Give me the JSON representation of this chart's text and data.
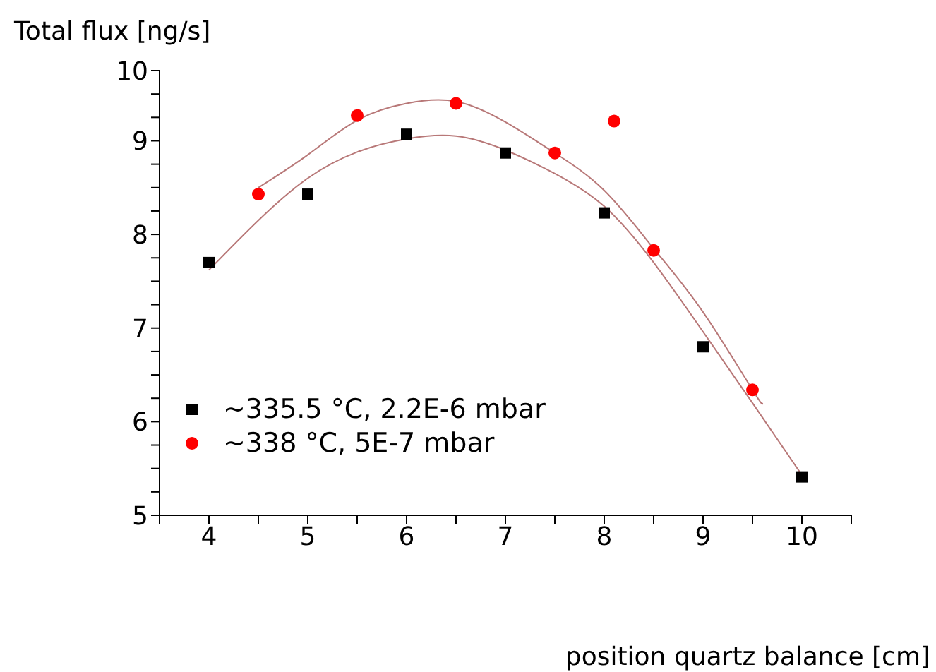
{
  "chart_data": {
    "type": "scatter",
    "ylabel": "Total flux [ng/s]",
    "xlabel": "position quartz balance [cm]",
    "xlim": [
      3.5,
      10.5
    ],
    "xticks": [
      {
        "value": 3.5,
        "label": null
      },
      4,
      {
        "value": 4.5,
        "label": null
      },
      5,
      {
        "value": 5.5,
        "label": null
      },
      6,
      {
        "value": 6.5,
        "label": null
      },
      7,
      {
        "value": 7.5,
        "label": null
      },
      8,
      {
        "value": 8.5,
        "label": null
      },
      9,
      {
        "value": 9.5,
        "label": null
      },
      10,
      {
        "value": 10.5,
        "label": null
      }
    ],
    "ylim": [
      5,
      9.75
    ],
    "yticks": [
      5,
      {
        "value": 5.25,
        "label": null
      },
      {
        "value": 5.5,
        "label": null
      },
      {
        "value": 5.75,
        "label": null
      },
      6,
      {
        "value": 6.25,
        "label": null
      },
      {
        "value": 6.5,
        "label": null
      },
      {
        "value": 6.75,
        "label": null
      },
      7,
      {
        "value": 7.25,
        "label": null
      },
      {
        "value": 7.5,
        "label": null
      },
      {
        "value": 7.75,
        "label": null
      },
      8,
      {
        "value": 8.25,
        "label": null
      },
      {
        "value": 8.5,
        "label": null
      },
      {
        "value": 8.75,
        "label": null
      },
      9,
      {
        "value": 9.25,
        "label": null
      },
      {
        "value": 9.5,
        "label": null
      },
      {
        "value": 9.75,
        "label": "10"
      }
    ],
    "legend": "left",
    "series": [
      {
        "name": "~335.5 °C, 2.2E-6 mbar",
        "marker": "square",
        "color": "#000000",
        "x": [
          4,
          5,
          6,
          7,
          8,
          9,
          10
        ],
        "values": [
          7.7,
          8.43,
          9.07,
          8.87,
          8.23,
          6.8,
          5.41
        ]
      },
      {
        "name": "~338 °C, 5E-7 mbar",
        "marker": "circle",
        "color": "#ff0000",
        "x": [
          4.5,
          5.5,
          6.5,
          7.5,
          8.1,
          8.5,
          9.5
        ],
        "values": [
          8.43,
          9.27,
          9.4,
          8.87,
          9.21,
          7.83,
          6.34
        ]
      },
      {
        "type": "line",
        "marker": "none",
        "line_style": "solid",
        "color": "#b87878",
        "x": [
          4,
          4.5,
          5,
          5.5,
          6,
          6.5,
          7,
          7.5,
          8,
          8.5,
          9,
          9.5,
          10
        ],
        "values": [
          7.62,
          8.15,
          8.6,
          8.88,
          9.02,
          9.05,
          8.9,
          8.65,
          8.3,
          7.7,
          6.96,
          6.2,
          5.43
        ]
      },
      {
        "type": "line",
        "marker": "none",
        "line_style": "solid",
        "color": "#b87878",
        "x": [
          4.5,
          5,
          5.5,
          6,
          6.5,
          7,
          7.5,
          8,
          8.5,
          9,
          9.5,
          9.6
        ],
        "values": [
          8.5,
          8.85,
          9.22,
          9.4,
          9.42,
          9.2,
          8.87,
          8.47,
          7.85,
          7.17,
          6.34,
          6.2
        ]
      }
    ]
  }
}
